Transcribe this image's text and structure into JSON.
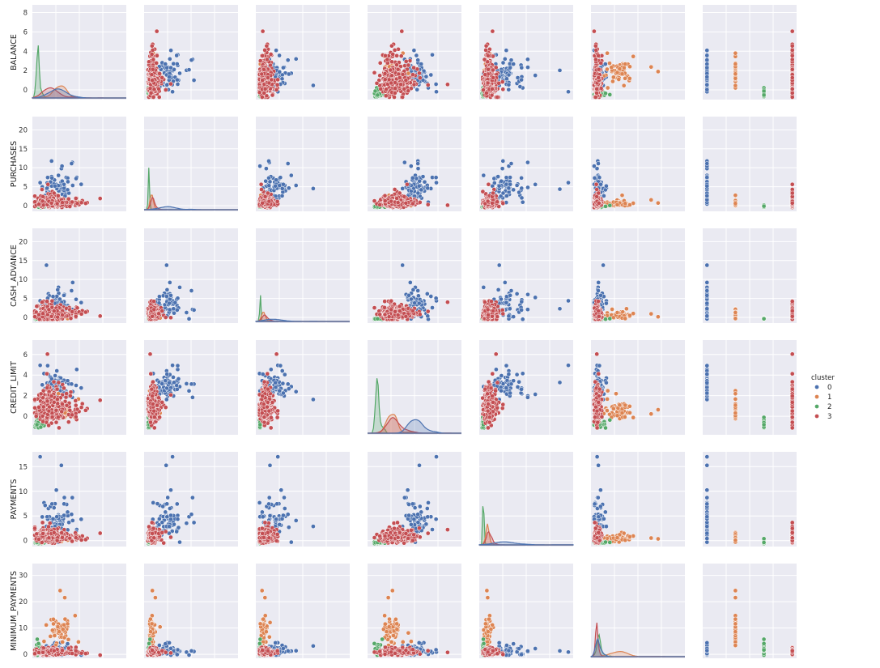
{
  "chart_data": {
    "type": "pairplot",
    "title": "",
    "variables": [
      "BALANCE",
      "PURCHASES",
      "CASH_ADVANCE",
      "CREDIT_LIMIT",
      "PAYMENTS",
      "MINIMUM_PAYMENTS"
    ],
    "axis_ranges": {
      "BALANCE": [
        -1,
        8.8
      ],
      "PURCHASES": [
        -1.5,
        23.5
      ],
      "CASH_ADVANCE": [
        -1.5,
        23.5
      ],
      "CREDIT_LIMIT": [
        -1.8,
        7.4
      ],
      "PAYMENTS": [
        -1.2,
        18
      ],
      "MINIMUM_PAYMENTS": [
        -1.5,
        34.5
      ]
    },
    "y_ticks": {
      "BALANCE": [
        0,
        2,
        4,
        6,
        8
      ],
      "PURCHASES": [
        0,
        5,
        10,
        15,
        20
      ],
      "CASH_ADVANCE": [
        0,
        5,
        10,
        15,
        20
      ],
      "CREDIT_LIMIT": [
        0,
        2,
        4,
        6
      ],
      "PAYMENTS": [
        0,
        5,
        10,
        15
      ],
      "MINIMUM_PAYMENTS": [
        0,
        10,
        20,
        30
      ]
    },
    "hue": "cluster",
    "series": [
      {
        "name": "0",
        "color": "#4c72b0"
      },
      {
        "name": "1",
        "color": "#dd8452"
      },
      {
        "name": "2",
        "color": "#55a868"
      },
      {
        "name": "3",
        "color": "#c44e52"
      }
    ],
    "diagonal": "kde",
    "grid": true,
    "legend_position": "right"
  },
  "legend": {
    "title": "cluster",
    "entries": [
      "0",
      "1",
      "2",
      "3"
    ]
  }
}
